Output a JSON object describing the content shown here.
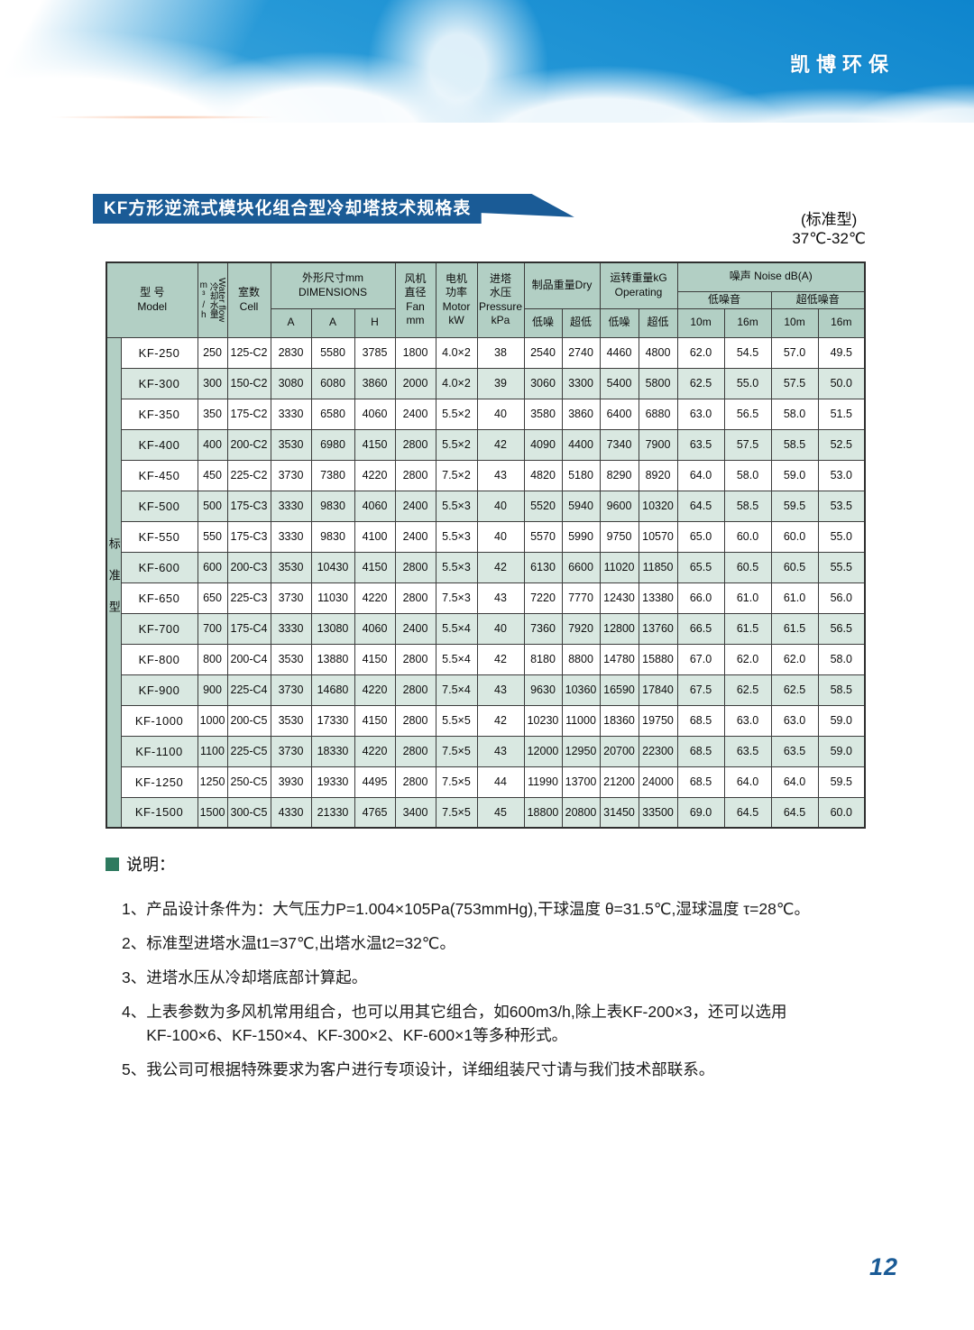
{
  "brand": "凯博环保",
  "title_banner": "KF方形逆流式模块化组合型冷却塔技术规格表",
  "type_label": {
    "line1": "(标准型)",
    "line2": "37℃-32℃"
  },
  "page_number": "12",
  "colors": {
    "banner_blue": "#1a5b96",
    "header_green": "#b2cfc4",
    "row_green": "#d9e8e1",
    "bullet_green": "#2e7a5f",
    "sky_blue": "#1c90d2"
  },
  "table": {
    "side_label": "标准型",
    "header": {
      "model_cn": "型 号",
      "model_en": "Model",
      "water_flow_cn": "冷却水量m³/h",
      "water_flow_en": "Water flow",
      "cell_cn": "室数",
      "cell_en": "Cell",
      "dims_cn": "外形尺寸mm",
      "dims_en": "DIMENSIONS",
      "dims_sub": [
        "A",
        "A",
        "H"
      ],
      "fan": [
        "风机",
        "直径",
        "Fan",
        "mm"
      ],
      "motor": [
        "电机",
        "功率",
        "Motor",
        "kW"
      ],
      "pressure": [
        "进塔",
        "水压",
        "Pressure",
        "kPa"
      ],
      "dry": "制品重量Dry",
      "operating_cn": "运转重量kG",
      "operating_en": "Operating",
      "noise": "噪声 Noise dB(A)",
      "noise_low_group": "低噪音",
      "noise_ultra_group": "超低噪音",
      "sub_low": "低噪",
      "sub_ultra": "超低",
      "dist": [
        "10m",
        "16m",
        "10m",
        "16m"
      ]
    },
    "rows": [
      [
        "KF-250",
        "250",
        "125-C2",
        "2830",
        "5580",
        "3785",
        "1800",
        "4.0×2",
        "38",
        "2540",
        "2740",
        "4460",
        "4800",
        "62.0",
        "54.5",
        "57.0",
        "49.5"
      ],
      [
        "KF-300",
        "300",
        "150-C2",
        "3080",
        "6080",
        "3860",
        "2000",
        "4.0×2",
        "39",
        "3060",
        "3300",
        "5400",
        "5800",
        "62.5",
        "55.0",
        "57.5",
        "50.0"
      ],
      [
        "KF-350",
        "350",
        "175-C2",
        "3330",
        "6580",
        "4060",
        "2400",
        "5.5×2",
        "40",
        "3580",
        "3860",
        "6400",
        "6880",
        "63.0",
        "56.5",
        "58.0",
        "51.5"
      ],
      [
        "KF-400",
        "400",
        "200-C2",
        "3530",
        "6980",
        "4150",
        "2800",
        "5.5×2",
        "42",
        "4090",
        "4400",
        "7340",
        "7900",
        "63.5",
        "57.5",
        "58.5",
        "52.5"
      ],
      [
        "KF-450",
        "450",
        "225-C2",
        "3730",
        "7380",
        "4220",
        "2800",
        "7.5×2",
        "43",
        "4820",
        "5180",
        "8290",
        "8920",
        "64.0",
        "58.0",
        "59.0",
        "53.0"
      ],
      [
        "KF-500",
        "500",
        "175-C3",
        "3330",
        "9830",
        "4060",
        "2400",
        "5.5×3",
        "40",
        "5520",
        "5940",
        "9600",
        "10320",
        "64.5",
        "58.5",
        "59.5",
        "53.5"
      ],
      [
        "KF-550",
        "550",
        "175-C3",
        "3330",
        "9830",
        "4100",
        "2400",
        "5.5×3",
        "40",
        "5570",
        "5990",
        "9750",
        "10570",
        "65.0",
        "60.0",
        "60.0",
        "55.0"
      ],
      [
        "KF-600",
        "600",
        "200-C3",
        "3530",
        "10430",
        "4150",
        "2800",
        "5.5×3",
        "42",
        "6130",
        "6600",
        "11020",
        "11850",
        "65.5",
        "60.5",
        "60.5",
        "55.5"
      ],
      [
        "KF-650",
        "650",
        "225-C3",
        "3730",
        "11030",
        "4220",
        "2800",
        "7.5×3",
        "43",
        "7220",
        "7770",
        "12430",
        "13380",
        "66.0",
        "61.0",
        "61.0",
        "56.0"
      ],
      [
        "KF-700",
        "700",
        "175-C4",
        "3330",
        "13080",
        "4060",
        "2400",
        "5.5×4",
        "40",
        "7360",
        "7920",
        "12800",
        "13760",
        "66.5",
        "61.5",
        "61.5",
        "56.5"
      ],
      [
        "KF-800",
        "800",
        "200-C4",
        "3530",
        "13880",
        "4150",
        "2800",
        "5.5×4",
        "42",
        "8180",
        "8800",
        "14780",
        "15880",
        "67.0",
        "62.0",
        "62.0",
        "58.0"
      ],
      [
        "KF-900",
        "900",
        "225-C4",
        "3730",
        "14680",
        "4220",
        "2800",
        "7.5×4",
        "43",
        "9630",
        "10360",
        "16590",
        "17840",
        "67.5",
        "62.5",
        "62.5",
        "58.5"
      ],
      [
        "KF-1000",
        "1000",
        "200-C5",
        "3530",
        "17330",
        "4150",
        "2800",
        "5.5×5",
        "42",
        "10230",
        "11000",
        "18360",
        "19750",
        "68.5",
        "63.0",
        "63.0",
        "59.0"
      ],
      [
        "KF-1100",
        "1100",
        "225-C5",
        "3730",
        "18330",
        "4220",
        "2800",
        "7.5×5",
        "43",
        "12000",
        "12950",
        "20700",
        "22300",
        "68.5",
        "63.5",
        "63.5",
        "59.0"
      ],
      [
        "KF-1250",
        "1250",
        "250-C5",
        "3930",
        "19330",
        "4495",
        "2800",
        "7.5×5",
        "44",
        "11990",
        "13700",
        "21200",
        "24000",
        "68.5",
        "64.0",
        "64.0",
        "59.5"
      ],
      [
        "KF-1500",
        "1500",
        "300-C5",
        "4330",
        "21330",
        "4765",
        "3400",
        "7.5×5",
        "45",
        "18800",
        "20800",
        "31450",
        "33500",
        "69.0",
        "64.5",
        "64.5",
        "60.0"
      ]
    ]
  },
  "notes": {
    "heading": "说明：",
    "items": [
      {
        "num": "1、",
        "lines": [
          "产品设计条件为：大气压力P=1.004×105Pa(753mmHg),干球温度 θ=31.5℃,湿球温度 τ=28℃。"
        ]
      },
      {
        "num": "2、",
        "lines": [
          "标准型进塔水温t1=37℃,出塔水温t2=32℃。"
        ]
      },
      {
        "num": "3、",
        "lines": [
          "进塔水压从冷却塔底部计算起。"
        ]
      },
      {
        "num": "4、",
        "lines": [
          "上表参数为多风机常用组合，也可以用其它组合，如600m3/h,除上表KF-200×3，还可以选用",
          "KF-100×6、KF-150×4、KF-300×2、KF-600×1等多种形式。"
        ]
      },
      {
        "num": "5、",
        "lines": [
          "我公司可根据特殊要求为客户进行专项设计，详细组装尺寸请与我们技术部联系。"
        ]
      }
    ]
  }
}
